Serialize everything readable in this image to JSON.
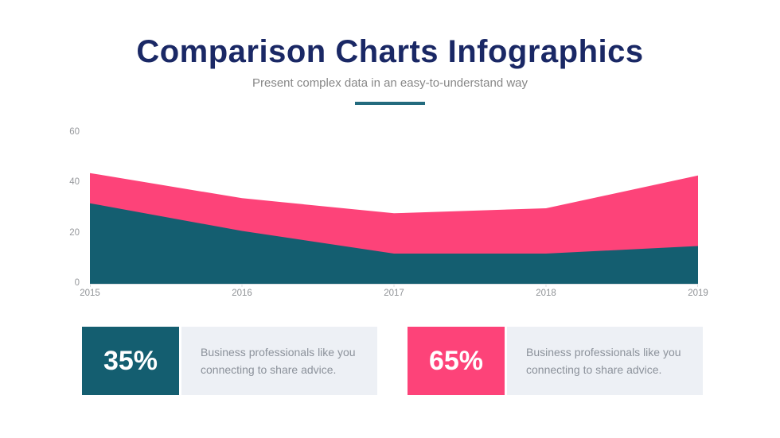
{
  "page": {
    "title": "Comparison Charts Infographics",
    "subtitle": "Present complex data in an easy-to-understand way"
  },
  "colors": {
    "title_navy": "#1a2865",
    "subtitle_gray": "#878787",
    "divider_teal": "#236b7e",
    "teal": "#145e70",
    "pink": "#fd4379",
    "card_panel_bg": "#edf0f5",
    "card_text_gray": "#8c929b",
    "axis_label_gray": "#97999d",
    "axis_line_gray": "#dcdfe2"
  },
  "chart_data": {
    "type": "area",
    "x": [
      2015,
      2016,
      2017,
      2018,
      2019
    ],
    "series": [
      {
        "name": "pink-area",
        "color": "#fd4379",
        "values": [
          44,
          34,
          28,
          30,
          43
        ]
      },
      {
        "name": "teal-area",
        "color": "#145e70",
        "values": [
          32,
          21,
          12,
          12,
          15
        ]
      }
    ],
    "layout": "overlapping-areas-pink-behind-teal",
    "xticks": [
      "2015",
      "2016",
      "2017",
      "2018",
      "2019"
    ],
    "yticks": [
      "0",
      "20",
      "40",
      "60"
    ],
    "ylim": [
      0,
      60
    ],
    "grid": false,
    "legend": false
  },
  "cards": [
    {
      "value": "35%",
      "color": "#145e70",
      "description": "Business professionals like you connecting to share advice."
    },
    {
      "value": "65%",
      "color": "#fd4379",
      "description": "Business professionals like you connecting to share advice."
    }
  ]
}
